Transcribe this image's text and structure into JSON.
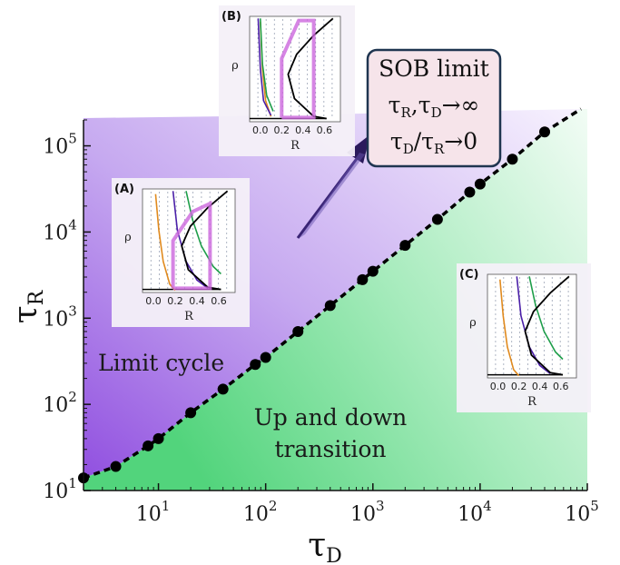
{
  "chart_data": {
    "type": "line",
    "x_axis": {
      "title_main": "τ",
      "title_sub": "D",
      "scale": "log",
      "range": [
        2,
        100000
      ],
      "ticks": [
        {
          "base": "10",
          "exp": "1",
          "value": 10
        },
        {
          "base": "10",
          "exp": "2",
          "value": 100
        },
        {
          "base": "10",
          "exp": "3",
          "value": 1000
        },
        {
          "base": "10",
          "exp": "4",
          "value": 10000
        },
        {
          "base": "10",
          "exp": "5",
          "value": 100000
        }
      ]
    },
    "y_axis": {
      "title_main": "τ",
      "title_sub": "R",
      "scale": "log",
      "range": [
        10,
        200000
      ],
      "ticks": [
        {
          "base": "10",
          "exp": "1",
          "value": 10
        },
        {
          "base": "10",
          "exp": "2",
          "value": 100
        },
        {
          "base": "10",
          "exp": "3",
          "value": 1000
        },
        {
          "base": "10",
          "exp": "4",
          "value": 10000
        },
        {
          "base": "10",
          "exp": "5",
          "value": 100000
        }
      ]
    },
    "boundary": {
      "style": "dashed line with markers",
      "x": [
        2,
        4,
        8,
        10,
        20,
        40,
        80,
        100,
        200,
        400,
        800,
        1000,
        2000,
        4000,
        8000,
        10000,
        20000,
        40000
      ],
      "y": [
        14,
        19,
        33,
        40,
        80,
        150,
        290,
        350,
        700,
        1400,
        2800,
        3500,
        7000,
        14000,
        29000,
        36000,
        70000,
        145000
      ]
    },
    "regions": {
      "upper": {
        "label": "Limit cycle",
        "color": "#9b5fe0"
      },
      "lower": {
        "label": "Up and down transition",
        "label_line1": "Up and down",
        "label_line2": "transition",
        "color": "#5cd685"
      }
    },
    "annotation": {
      "line1": "SOB limit",
      "line2": "τR,τD→∞",
      "line3": "τD/τR→0",
      "parts2": {
        "a": "τ",
        "a_sub": "R",
        "sep": ",",
        "b": "τ",
        "b_sub": "D",
        "arrow": "→∞"
      },
      "parts3": {
        "a": "τ",
        "a_sub": "D",
        "sep": "/",
        "b": "τ",
        "b_sub": "R",
        "arrow": "→0"
      },
      "fill": "#f6e4ea",
      "border": "#1f3550"
    },
    "insets": {
      "axis_x_label": "R",
      "axis_y_label": "ρ",
      "x_ticks": [
        "0.0",
        "0.2",
        "0.4",
        "0.6"
      ],
      "panels": [
        {
          "tag": "(A)"
        },
        {
          "tag": "(B)"
        },
        {
          "tag": "(C)"
        }
      ],
      "curve_colors": {
        "orange": "#e08a1e",
        "purple": "#4a1fa8",
        "green": "#1e9e4a",
        "black": "#000000",
        "magenta": "#cc66dd"
      }
    }
  }
}
